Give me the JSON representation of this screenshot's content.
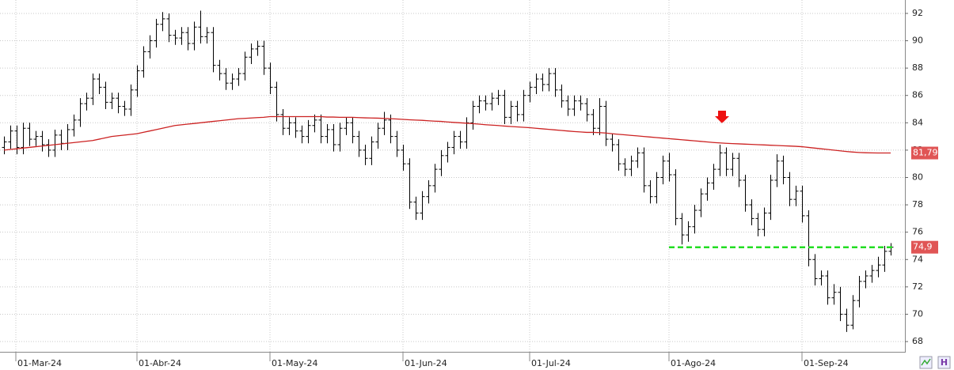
{
  "chart_data": {
    "type": "ohlc",
    "categories": [
      "01-Mar-24",
      null,
      null,
      null,
      null,
      null,
      null,
      null,
      null,
      null,
      null,
      null,
      null,
      null,
      null,
      null,
      null,
      null,
      null,
      null,
      null,
      "01-Abr-24",
      null,
      null,
      null,
      null,
      null,
      null,
      null,
      null,
      null,
      null,
      null,
      null,
      null,
      null,
      null,
      null,
      null,
      null,
      null,
      null,
      "01-May-24",
      null,
      null,
      null,
      null,
      null,
      null,
      null,
      null,
      null,
      null,
      null,
      null,
      null,
      null,
      null,
      null,
      null,
      null,
      null,
      null,
      "01-Jun-24",
      null,
      null,
      null,
      null,
      null,
      null,
      null,
      null,
      null,
      null,
      null,
      null,
      null,
      null,
      null,
      null,
      null,
      null,
      null,
      "01-Jul-24",
      null,
      null,
      null,
      null,
      null,
      null,
      null,
      null,
      null,
      null,
      null,
      null,
      null,
      null,
      null,
      null,
      null,
      null,
      null,
      null,
      null,
      "01-Ago-24",
      null,
      null,
      null,
      null,
      null,
      null,
      null,
      null,
      null,
      null,
      null,
      null,
      null,
      null,
      null,
      null,
      null,
      null,
      null,
      null,
      "01-Sep-24",
      null,
      null,
      null,
      null,
      null,
      null,
      null,
      null,
      null,
      null,
      null,
      null,
      null,
      null
    ],
    "ohlc": {
      "color": "#000000",
      "open": [
        82.2,
        82.6,
        83.4,
        82.2,
        83.6,
        82.8,
        83.0,
        82.4,
        82.0,
        83.1,
        82.5,
        83.5,
        84.2,
        85.4,
        85.8,
        87.2,
        86.6,
        85.5,
        85.8,
        85.2,
        85.0,
        86.4,
        87.8,
        89.2,
        90.0,
        91.2,
        91.6,
        90.4,
        90.2,
        90.6,
        89.8,
        91.0,
        90.3,
        90.6,
        88.2,
        87.6,
        86.9,
        87.2,
        87.6,
        88.8,
        89.4,
        89.6,
        88.0,
        86.6,
        84.6,
        83.6,
        84.0,
        83.4,
        83.0,
        83.8,
        84.2,
        83.0,
        83.5,
        82.4,
        83.6,
        84.0,
        83.0,
        82.0,
        81.4,
        82.6,
        83.6,
        84.2,
        83.0,
        82.0,
        81.0,
        78.2,
        77.4,
        78.6,
        79.4,
        80.6,
        81.6,
        82.2,
        83.0,
        82.6,
        84.0,
        85.2,
        85.6,
        85.4,
        85.8,
        86.0,
        84.4,
        85.2,
        84.6,
        86.0,
        86.6,
        87.2,
        86.8,
        87.6,
        86.4,
        85.6,
        85.0,
        85.6,
        85.4,
        84.6,
        83.6,
        85.2,
        82.8,
        82.4,
        81.0,
        80.6,
        81.2,
        81.8,
        79.4,
        78.6,
        80.0,
        81.2,
        80.2,
        77.0,
        75.8,
        76.4,
        77.6,
        78.8,
        79.6,
        80.6,
        81.8,
        80.6,
        81.4,
        79.8,
        78.0,
        77.0,
        76.2,
        77.4,
        79.8,
        81.2,
        80.0,
        78.4,
        79.0,
        77.2,
        74.0,
        72.6,
        72.8,
        71.2,
        71.6,
        70.0,
        69.2,
        71.0,
        72.4,
        72.8,
        73.2,
        73.6,
        74.6
      ],
      "high": [
        83.0,
        83.8,
        83.8,
        84.0,
        84.0,
        83.4,
        83.4,
        82.8,
        83.5,
        83.5,
        83.9,
        84.6,
        85.8,
        86.2,
        87.6,
        87.6,
        87.0,
        86.2,
        86.2,
        85.6,
        86.8,
        88.2,
        89.6,
        90.4,
        91.6,
        92.1,
        92.0,
        90.8,
        91.0,
        91.0,
        91.4,
        92.2,
        91.0,
        91.0,
        88.6,
        88.0,
        87.6,
        88.0,
        89.2,
        89.8,
        90.0,
        90.0,
        88.4,
        87.0,
        85.0,
        84.4,
        84.4,
        83.8,
        84.2,
        84.6,
        84.6,
        83.9,
        83.9,
        84.0,
        84.4,
        84.4,
        83.4,
        82.4,
        83.0,
        84.0,
        84.8,
        84.6,
        83.4,
        82.4,
        81.4,
        78.6,
        79.0,
        79.8,
        81.0,
        82.0,
        82.6,
        83.4,
        83.4,
        84.4,
        85.6,
        86.0,
        86.0,
        86.2,
        86.4,
        86.4,
        85.6,
        85.6,
        86.4,
        87.0,
        87.6,
        87.6,
        88.0,
        88.0,
        86.8,
        86.0,
        86.0,
        86.0,
        85.8,
        85.0,
        85.8,
        85.6,
        83.2,
        82.8,
        81.4,
        81.6,
        82.2,
        82.2,
        79.8,
        80.4,
        81.6,
        81.8,
        80.6,
        77.4,
        76.8,
        78.0,
        79.2,
        80.0,
        81.0,
        82.4,
        82.2,
        81.8,
        81.8,
        80.2,
        78.4,
        77.4,
        77.8,
        80.2,
        81.7,
        81.6,
        80.4,
        79.4,
        79.4,
        77.6,
        74.4,
        73.2,
        73.2,
        72.2,
        72.0,
        70.4,
        71.4,
        72.8,
        73.2,
        73.6,
        74.2,
        75.0,
        75.2
      ],
      "low": [
        81.7,
        82.1,
        81.7,
        81.7,
        82.3,
        82.3,
        81.9,
        81.5,
        81.5,
        82.0,
        82.0,
        83.0,
        83.7,
        84.9,
        85.3,
        86.1,
        85.0,
        85.0,
        84.7,
        84.5,
        84.5,
        85.9,
        87.3,
        88.7,
        89.5,
        90.7,
        89.9,
        89.7,
        89.7,
        89.3,
        89.3,
        89.8,
        89.8,
        87.7,
        87.1,
        86.4,
        86.4,
        86.7,
        87.1,
        88.3,
        88.9,
        87.5,
        86.1,
        84.1,
        83.1,
        83.1,
        82.9,
        82.5,
        82.5,
        83.3,
        82.5,
        82.5,
        81.9,
        81.9,
        83.1,
        82.5,
        81.5,
        80.9,
        80.9,
        82.1,
        83.1,
        82.5,
        81.5,
        80.5,
        77.7,
        76.9,
        76.9,
        78.1,
        78.9,
        80.1,
        81.1,
        81.7,
        82.1,
        82.1,
        83.5,
        84.7,
        84.9,
        84.9,
        85.3,
        83.9,
        83.9,
        84.1,
        84.1,
        85.5,
        86.1,
        86.3,
        86.3,
        85.9,
        85.1,
        84.5,
        84.5,
        84.9,
        84.1,
        83.1,
        83.1,
        82.3,
        81.9,
        80.5,
        80.1,
        80.1,
        80.7,
        78.9,
        78.1,
        78.1,
        79.5,
        79.7,
        76.5,
        75.1,
        75.3,
        75.9,
        77.1,
        78.3,
        79.1,
        80.1,
        80.1,
        80.1,
        79.3,
        77.5,
        76.5,
        75.7,
        75.7,
        76.9,
        79.3,
        79.5,
        77.9,
        77.9,
        76.7,
        73.5,
        72.1,
        72.1,
        70.7,
        70.7,
        69.5,
        68.7,
        68.9,
        70.5,
        71.9,
        72.3,
        72.7,
        73.1,
        74.3
      ],
      "close": [
        82.6,
        83.4,
        82.2,
        83.6,
        82.8,
        83.0,
        82.4,
        82.0,
        83.1,
        82.5,
        83.5,
        84.2,
        85.4,
        85.8,
        87.2,
        86.6,
        85.5,
        85.8,
        85.2,
        85.0,
        86.4,
        87.8,
        89.2,
        90.0,
        91.2,
        91.6,
        90.4,
        90.2,
        90.6,
        89.8,
        91.0,
        90.3,
        90.6,
        88.2,
        87.6,
        86.9,
        87.2,
        87.6,
        88.8,
        89.4,
        89.6,
        88.0,
        86.6,
        84.6,
        83.6,
        84.0,
        83.4,
        83.0,
        83.8,
        84.2,
        83.0,
        83.5,
        82.4,
        83.6,
        84.0,
        83.0,
        82.0,
        81.4,
        82.6,
        83.6,
        84.2,
        83.0,
        82.0,
        81.0,
        78.2,
        77.4,
        78.6,
        79.4,
        80.6,
        81.6,
        82.2,
        83.0,
        82.6,
        84.0,
        85.2,
        85.6,
        85.4,
        85.8,
        86.0,
        84.4,
        85.2,
        84.6,
        86.0,
        86.6,
        87.2,
        86.8,
        87.6,
        86.4,
        85.6,
        85.0,
        85.6,
        85.4,
        84.6,
        83.6,
        85.2,
        82.8,
        82.4,
        81.0,
        80.6,
        81.2,
        81.8,
        79.4,
        78.6,
        80.0,
        81.2,
        80.2,
        77.0,
        75.8,
        76.4,
        77.6,
        78.8,
        79.6,
        80.6,
        81.8,
        80.6,
        81.4,
        79.8,
        78.0,
        77.0,
        76.2,
        77.4,
        79.8,
        81.2,
        80.0,
        78.4,
        79.0,
        77.2,
        74.0,
        72.6,
        72.8,
        71.2,
        71.6,
        70.0,
        69.2,
        71.0,
        72.4,
        72.8,
        73.2,
        73.6,
        74.6,
        74.9
      ]
    },
    "moving_average": {
      "color": "#cc2222",
      "values": [
        82.0,
        82.05,
        82.1,
        82.15,
        82.2,
        82.25,
        82.3,
        82.35,
        82.4,
        82.45,
        82.5,
        82.55,
        82.6,
        82.65,
        82.7,
        82.8,
        82.9,
        83.0,
        83.05,
        83.1,
        83.15,
        83.2,
        83.3,
        83.4,
        83.5,
        83.6,
        83.7,
        83.8,
        83.85,
        83.9,
        83.95,
        84.0,
        84.05,
        84.1,
        84.15,
        84.2,
        84.25,
        84.3,
        84.32,
        84.35,
        84.38,
        84.4,
        84.45,
        84.45,
        84.45,
        84.45,
        84.45,
        84.45,
        84.45,
        84.45,
        84.45,
        84.42,
        84.42,
        84.4,
        84.4,
        84.4,
        84.38,
        84.36,
        84.35,
        84.34,
        84.32,
        84.3,
        84.28,
        84.25,
        84.22,
        84.2,
        84.18,
        84.15,
        84.12,
        84.1,
        84.06,
        84.03,
        84.0,
        83.97,
        83.94,
        83.9,
        83.86,
        83.83,
        83.8,
        83.76,
        83.73,
        83.7,
        83.67,
        83.64,
        83.6,
        83.56,
        83.52,
        83.48,
        83.44,
        83.4,
        83.36,
        83.33,
        83.3,
        83.3,
        83.28,
        83.25,
        83.2,
        83.16,
        83.12,
        83.08,
        83.04,
        83.0,
        82.96,
        82.92,
        82.88,
        82.84,
        82.8,
        82.76,
        82.72,
        82.68,
        82.64,
        82.6,
        82.56,
        82.53,
        82.5,
        82.48,
        82.46,
        82.44,
        82.42,
        82.4,
        82.38,
        82.36,
        82.34,
        82.32,
        82.3,
        82.28,
        82.25,
        82.2,
        82.15,
        82.1,
        82.05,
        82.0,
        81.95,
        81.9,
        81.86,
        81.83,
        81.81,
        81.8,
        81.79,
        81.79,
        81.79
      ]
    },
    "support_line": {
      "value": 74.9,
      "color": "#22dd22"
    },
    "price_labels": [
      {
        "value": 81.79,
        "label": "81,79",
        "color": "#e05555"
      },
      {
        "value": 74.9,
        "label": "74,9",
        "color": "#e05555"
      }
    ],
    "ylim": [
      67.25,
      92.98
    ],
    "yticks": [
      68,
      70,
      72,
      74,
      76,
      78,
      80,
      82,
      84,
      86,
      88,
      90,
      92
    ],
    "grid": true
  }
}
